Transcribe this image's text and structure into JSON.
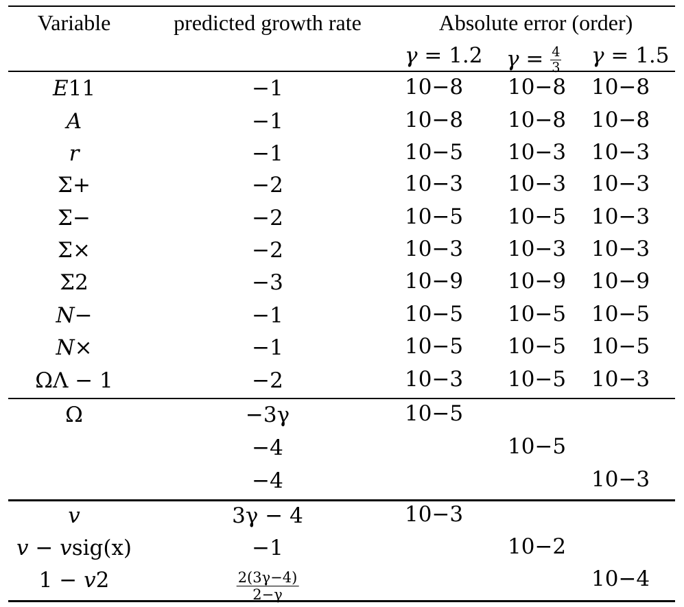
{
  "header": {
    "variable": "Variable",
    "rate": "predicted growth rate",
    "error": "Absolute error (order)",
    "gammas": [
      {
        "sym": "γ",
        "eq": " = 1.2"
      },
      {
        "sym": "γ",
        "eq": " = ",
        "num": "4",
        "den": "3"
      },
      {
        "sym": "γ",
        "eq": " = 1.5"
      }
    ]
  },
  "rows": [
    {
      "var": {
        "base": "E",
        "sub": "1",
        "sup": "1"
      },
      "rate": "−1",
      "errs": [
        "−8",
        "−8",
        "−8"
      ]
    },
    {
      "var": {
        "base": "A"
      },
      "rate": "−1",
      "errs": [
        "−8",
        "−8",
        "−8"
      ]
    },
    {
      "var": {
        "base": "r"
      },
      "rate": "−1",
      "errs": [
        "−5",
        "−3",
        "−3"
      ]
    },
    {
      "var": {
        "base": "Σ",
        "sub": "+"
      },
      "rate": "−2",
      "errs": [
        "−3",
        "−3",
        "−3"
      ]
    },
    {
      "var": {
        "base": "Σ",
        "sub": "−"
      },
      "rate": "−2",
      "errs": [
        "−5",
        "−5",
        "−3"
      ]
    },
    {
      "var": {
        "base": "Σ",
        "sub": "×"
      },
      "rate": "−2",
      "errs": [
        "−3",
        "−3",
        "−3"
      ]
    },
    {
      "var": {
        "base": "Σ",
        "sub": "2"
      },
      "rate": "−3",
      "errs": [
        "−9",
        "−9",
        "−9"
      ]
    },
    {
      "var": {
        "base": "N",
        "sub": "−"
      },
      "rate": "−1",
      "errs": [
        "−5",
        "−5",
        "−5"
      ]
    },
    {
      "var": {
        "base": "N",
        "sub": "×"
      },
      "rate": "−1",
      "errs": [
        "−5",
        "−5",
        "−5"
      ]
    },
    {
      "var": {
        "base": "Ω",
        "sub": "Λ",
        "tail": " − 1"
      },
      "rate": "−2",
      "errs": [
        "−3",
        "−5",
        "−3"
      ]
    },
    {
      "var": {
        "base": "Ω"
      },
      "rate": "−3γ",
      "errs": [
        "−5",
        "",
        ""
      ]
    },
    {
      "var": {},
      "rate": "−4",
      "errs": [
        "",
        "−5",
        ""
      ]
    },
    {
      "var": {},
      "rate": "−4",
      "errs": [
        "",
        "",
        "−3"
      ]
    },
    {
      "var": {
        "base": "v"
      },
      "rate": "3γ − 4",
      "errs": [
        "−3",
        "",
        ""
      ]
    },
    {
      "var": {
        "base": "v",
        "tail": " − v",
        "sub2": "sig",
        "tail2": "(x)"
      },
      "rate": "−1",
      "errs": [
        "",
        "−2",
        ""
      ]
    },
    {
      "var": {
        "pre": "1 − ",
        "base": "v",
        "sup": "2"
      },
      "rate": {
        "num": "2(3γ−4)",
        "den": "2−γ"
      },
      "errs": [
        "",
        "",
        "−4"
      ]
    }
  ],
  "base10": "10"
}
